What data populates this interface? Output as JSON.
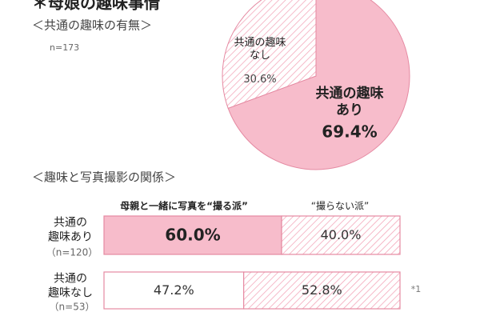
{
  "title": "＊母娘の趣味事情",
  "chart_data": [
    {
      "type": "pie",
      "subtitle": "＜共通の趣味の有無＞",
      "note": "n=173",
      "labels": [
        "共通の趣味\nあり",
        "共通の趣味\nなし"
      ],
      "values": [
        69.4,
        30.6
      ],
      "value_labels": [
        "69.4%",
        "30.6%"
      ],
      "colors": [
        "#f7bccb",
        "#f3a3b7"
      ]
    },
    {
      "type": "stacked-bar",
      "subtitle": "＜趣味と写真撮影の関係＞",
      "categories": [
        "共通の\n趣味あり",
        "共通の\n趣味なし"
      ],
      "category_notes": [
        "（n=120）",
        "（n=53）"
      ],
      "xlim": [
        0,
        100
      ],
      "note": "*1",
      "series": [
        {
          "name": "母親と一緒に写真を“撮る派”",
          "color": "#f7bccb",
          "values": [
            60.0,
            47.2
          ],
          "value_labels": [
            "60.0%",
            "47.2%"
          ]
        },
        {
          "name": "“撮らない派”",
          "color": "#f3a3b7",
          "values": [
            40.0,
            52.8
          ],
          "value_labels": [
            "40.0%",
            "52.8%"
          ]
        }
      ]
    }
  ]
}
